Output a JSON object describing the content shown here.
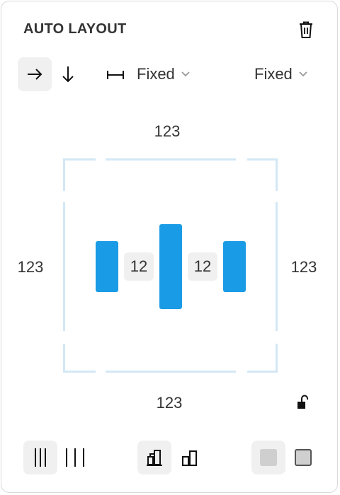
{
  "panel": {
    "title": "AUTO LAYOUT",
    "icons": {
      "delete": "trash-icon",
      "horizontal": "arrow-right-icon",
      "vertical": "arrow-down-icon",
      "width": "horizontal-resize-icon",
      "lock": "unlock-icon"
    },
    "sizing": {
      "width_label": "Fixed",
      "height_label": "Fixed"
    },
    "padding": {
      "top": "123",
      "left": "123",
      "right": "123",
      "bottom": "123"
    },
    "spacing": {
      "gap1": "12",
      "gap2": "12"
    },
    "colors": {
      "accent": "#1a9be6",
      "frame": "#d3e7f5",
      "button_bg": "#f0f0f0"
    }
  }
}
